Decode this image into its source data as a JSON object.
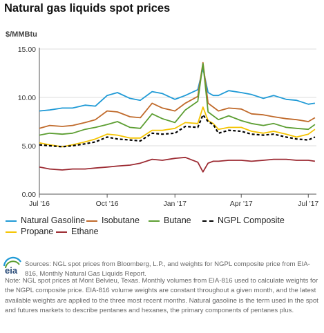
{
  "title": "Natural gas liquids spot prices",
  "unit_label": "$/MMBtu",
  "source": "Sources: NGL spot prices from Bloomberg, L.P., and weights for NGPL composite price from EIA-816, Monthly Natural Gas Liquids Report.",
  "note": "Note: NGL spot prices at Mont Belvieu, Texas. Monthly volumes from EIA-816 used to calculate weights for the NGPL composite price. EIA-816 volume weights are constant throughout a given month, and the latest available weights are applied to the three most recent months. Natural gasoline is the term used in the spot and futures markets to describe pentanes and hexanes, the primary components of pentanes plus.",
  "logo_text": "eia",
  "colors": {
    "natural_gasoline": "#1f9ad6",
    "isobutane": "#c06a2b",
    "butane": "#5c9e32",
    "ngpl_composite": "#000000",
    "propane": "#f5c400",
    "ethane": "#9c2a32",
    "grid": "#dddddd",
    "axis": "#555555"
  },
  "chart_data": {
    "type": "line",
    "title": "Natural gas liquids spot prices",
    "ylabel": "$/MMBtu",
    "xlabel": "",
    "ylim": [
      0,
      15
    ],
    "yticks": [
      "0.00",
      "5.00",
      "10.00",
      "15.00"
    ],
    "xticks": [
      "Jul '16",
      "Oct '16",
      "Jan '17",
      "Apr '17",
      "Jul '17"
    ],
    "grid": "horizontal",
    "legend_position": "bottom",
    "x": [
      "2016-07-01",
      "2016-07-15",
      "2016-08-01",
      "2016-08-15",
      "2016-09-01",
      "2016-09-15",
      "2016-10-01",
      "2016-10-15",
      "2016-11-01",
      "2016-11-15",
      "2016-12-01",
      "2016-12-15",
      "2017-01-01",
      "2017-01-15",
      "2017-02-01",
      "2017-02-08",
      "2017-02-15",
      "2017-02-22",
      "2017-03-01",
      "2017-03-15",
      "2017-04-01",
      "2017-04-15",
      "2017-05-01",
      "2017-05-15",
      "2017-06-01",
      "2017-06-15",
      "2017-07-01",
      "2017-07-10"
    ],
    "series": [
      {
        "name": "Natural Gasoline",
        "values": [
          8.6,
          8.7,
          8.9,
          8.9,
          9.2,
          9.1,
          10.2,
          10.5,
          9.9,
          9.7,
          10.6,
          10.4,
          9.8,
          10.2,
          10.8,
          13.0,
          10.5,
          10.2,
          10.2,
          10.7,
          10.5,
          10.3,
          9.9,
          10.2,
          9.8,
          9.7,
          9.3,
          9.4
        ]
      },
      {
        "name": "Isobutane",
        "values": [
          6.8,
          7.1,
          7.0,
          7.1,
          7.4,
          7.7,
          8.6,
          8.5,
          8.0,
          7.9,
          9.4,
          8.9,
          8.6,
          9.4,
          10.1,
          13.6,
          9.4,
          9.0,
          8.6,
          8.9,
          8.8,
          8.3,
          8.2,
          8.0,
          7.8,
          7.7,
          7.5,
          7.9
        ]
      },
      {
        "name": "Butane",
        "values": [
          6.1,
          6.3,
          6.2,
          6.3,
          6.7,
          6.9,
          7.2,
          7.5,
          6.9,
          6.8,
          8.3,
          7.8,
          7.4,
          8.7,
          9.6,
          13.5,
          8.5,
          8.1,
          7.7,
          8.1,
          7.6,
          7.3,
          7.1,
          7.3,
          6.9,
          6.8,
          6.7,
          7.2
        ]
      },
      {
        "name": "NGPL Composite",
        "values": [
          5.1,
          5.0,
          4.9,
          5.0,
          5.2,
          5.4,
          5.9,
          5.7,
          5.6,
          5.5,
          6.3,
          6.2,
          6.3,
          7.0,
          6.9,
          8.2,
          7.5,
          7.2,
          6.3,
          6.6,
          6.5,
          6.2,
          6.1,
          6.2,
          5.9,
          5.7,
          5.6,
          5.9
        ]
      },
      {
        "name": "Propane",
        "values": [
          5.3,
          5.1,
          4.9,
          5.1,
          5.4,
          5.7,
          6.2,
          6.1,
          5.8,
          5.8,
          6.6,
          6.6,
          6.8,
          7.4,
          7.3,
          9.0,
          7.6,
          7.3,
          6.7,
          6.9,
          6.9,
          6.5,
          6.3,
          6.5,
          6.2,
          5.9,
          6.2,
          6.7
        ]
      },
      {
        "name": "Ethane",
        "values": [
          2.8,
          2.6,
          2.5,
          2.6,
          2.6,
          2.7,
          2.8,
          2.9,
          3.0,
          3.2,
          3.6,
          3.5,
          3.7,
          3.8,
          3.3,
          2.3,
          3.2,
          3.4,
          3.4,
          3.5,
          3.5,
          3.4,
          3.5,
          3.6,
          3.6,
          3.5,
          3.5,
          3.4
        ]
      }
    ]
  }
}
